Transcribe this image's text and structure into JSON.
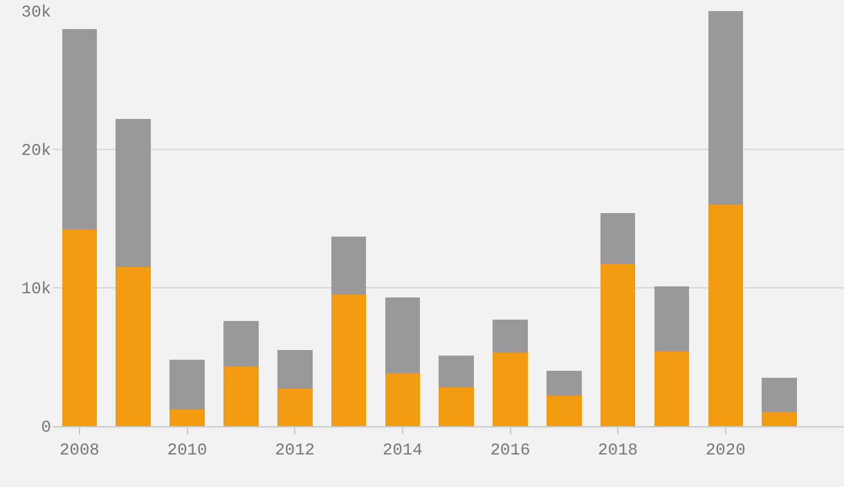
{
  "chart_data": {
    "type": "bar",
    "stacked": true,
    "x": [
      2008,
      2009,
      2010,
      2011,
      2012,
      2013,
      2014,
      2015,
      2016,
      2017,
      2018,
      2019,
      2020,
      2021
    ],
    "series": [
      {
        "color": "#f39c12",
        "values": [
          14200,
          11500,
          1200,
          4300,
          2700,
          9500,
          3800,
          2800,
          5300,
          2200,
          11700,
          5400,
          16000,
          1000
        ]
      },
      {
        "color": "#999999",
        "values": [
          14500,
          10700,
          3600,
          3300,
          2800,
          4200,
          5500,
          2300,
          2400,
          1800,
          3700,
          4700,
          14000,
          2500
        ]
      }
    ],
    "xlim": [
      2007.5,
      2022.2
    ],
    "xticks": [
      2008,
      2010,
      2012,
      2014,
      2016,
      2018,
      2020
    ],
    "ylim": [
      0,
      30000
    ],
    "yticks": [
      {
        "value": 0,
        "label": "0"
      },
      {
        "value": 10000,
        "label": "10k"
      },
      {
        "value": 20000,
        "label": "20k"
      },
      {
        "value": 30000,
        "label": "30k"
      }
    ],
    "grid": "y",
    "legend": false
  }
}
